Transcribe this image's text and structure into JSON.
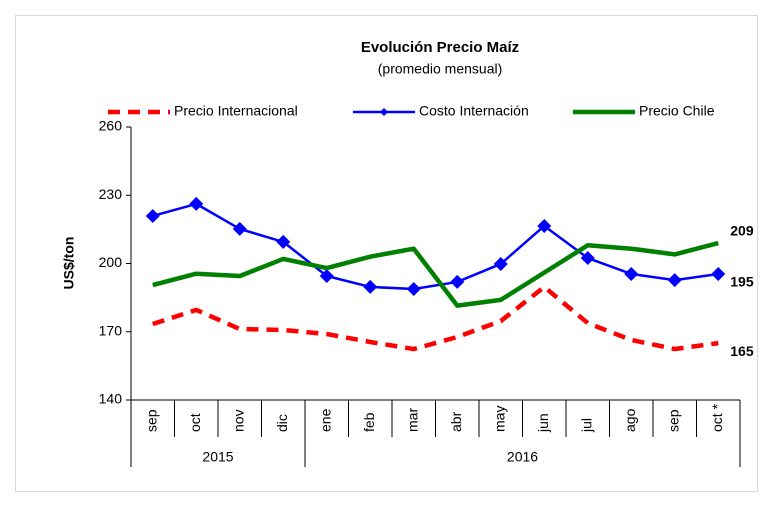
{
  "chart_data": {
    "type": "line",
    "title": "Evolución Precio Maíz",
    "subtitle": "(promedio mensual)",
    "y_label": "US$/ton",
    "categories": [
      "sep",
      "oct",
      "nov",
      "dic",
      "ene",
      "feb",
      "mar",
      "abr",
      "may",
      "jun",
      "jul",
      "ago",
      "sep",
      "oct *"
    ],
    "groups": [
      {
        "label": "2015",
        "span": 4
      },
      {
        "label": "2016",
        "span": 10
      }
    ],
    "ylim": [
      140,
      260
    ],
    "yticks": [
      140,
      170,
      200,
      230,
      260
    ],
    "grid": false,
    "legend": "top",
    "series": [
      {
        "name": "Precio Internacional",
        "color": "#ff0000",
        "style": "dashed",
        "marker": "none",
        "values": [
          173.4,
          179.6,
          171.2,
          170.8,
          169,
          165.5,
          162.4,
          167.7,
          174.7,
          189.7,
          173.8,
          166.4,
          162.4,
          165
        ],
        "value_labels": [
          null,
          null,
          null,
          null,
          null,
          null,
          null,
          null,
          null,
          null,
          null,
          null,
          null,
          "165"
        ]
      },
      {
        "name": "Costo Internación",
        "color": "#0000ff",
        "style": "solid",
        "marker": "diamond",
        "values": [
          220.9,
          226.2,
          215.2,
          209.5,
          194.5,
          189.7,
          188.8,
          191.9,
          199.8,
          216.5,
          202.4,
          195.4,
          192.7,
          195.4
        ],
        "value_labels": [
          null,
          null,
          null,
          null,
          null,
          null,
          null,
          null,
          null,
          null,
          null,
          null,
          null,
          "195"
        ]
      },
      {
        "name": "Precio Chile",
        "color": "#008000",
        "style": "solid",
        "marker": "none",
        "values": [
          190.5,
          195.5,
          194.5,
          202,
          198,
          203,
          206.5,
          181.5,
          184,
          196,
          208,
          206.5,
          204,
          209
        ],
        "value_labels": [
          null,
          null,
          null,
          null,
          null,
          null,
          null,
          null,
          null,
          null,
          null,
          null,
          null,
          "209"
        ]
      }
    ]
  }
}
